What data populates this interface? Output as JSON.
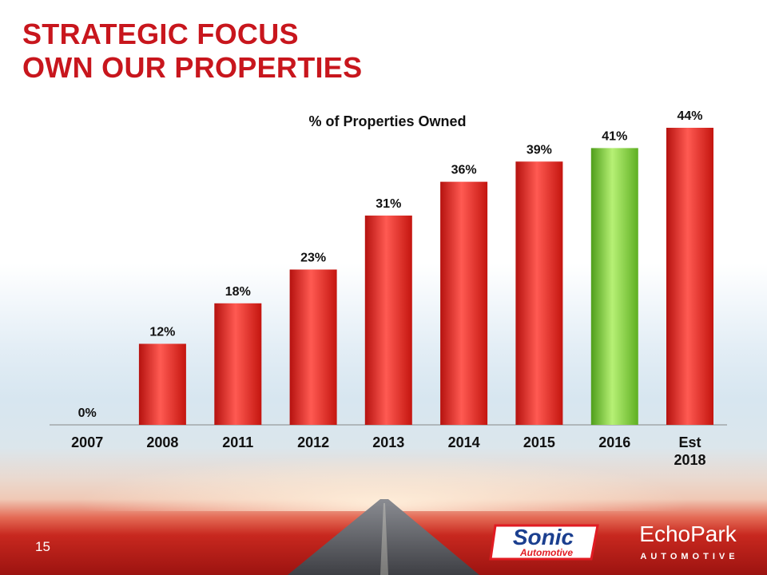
{
  "slide": {
    "title_line1": "STRATEGIC FOCUS",
    "title_line2": "OWN OUR PROPERTIES",
    "page_number": "15"
  },
  "chart_data": {
    "type": "bar",
    "title": "% of Properties Owned",
    "xlabel": "",
    "ylabel": "",
    "ylim": [
      0,
      44
    ],
    "unit": "%",
    "categories": [
      "2007",
      "2008",
      "2011",
      "2012",
      "2013",
      "2014",
      "2015",
      "2016",
      "Est 2018"
    ],
    "values": [
      0,
      12,
      18,
      23,
      31,
      36,
      39,
      41,
      44
    ],
    "data_labels": [
      "0%",
      "12%",
      "18%",
      "23%",
      "31%",
      "36%",
      "39%",
      "41%",
      "44%"
    ],
    "highlight_category": "2016",
    "colors": {
      "bar": "#e3221e",
      "bar_light": "#ff5a52",
      "bar_dark": "#b5120f",
      "highlight": "#7dd83a",
      "highlight_light": "#b6f075",
      "highlight_dark": "#4f9e1b"
    },
    "grid": false,
    "legend": "none"
  },
  "logos": {
    "sonic": {
      "text": "Sonic",
      "subtext": "Automotive"
    },
    "echopark": {
      "text": "EchoPark",
      "subtext": "AUTOMOTIVE"
    }
  }
}
